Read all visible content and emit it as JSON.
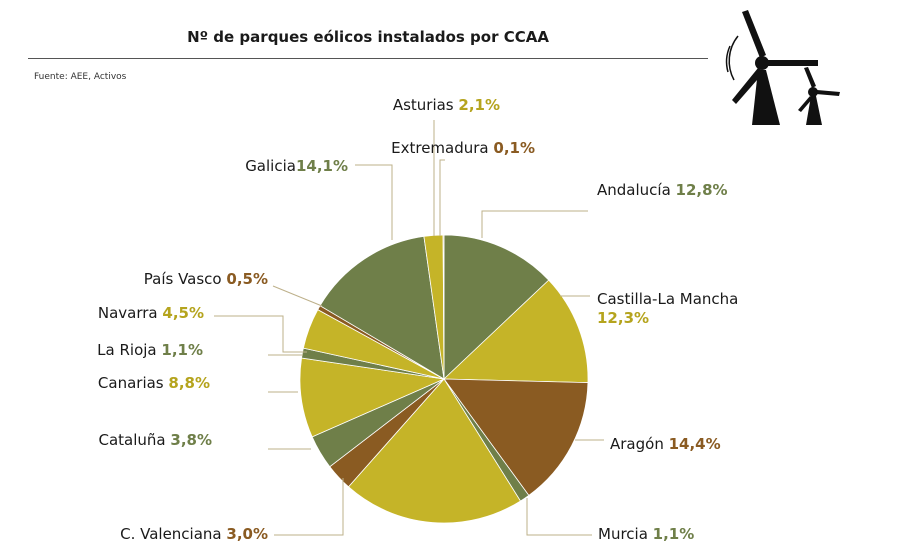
{
  "title": "Nº de parques eólicos instalados por CCAA",
  "source": "Fuente: AEE, Activos",
  "icon": "wind-turbines-icon",
  "colors": {
    "olive": "#6f7f49",
    "gold": "#c5b428",
    "brown": "#8a5b22"
  },
  "chart_data": {
    "type": "pie",
    "title": "Nº de parques eólicos instalados por CCAA",
    "slices": [
      {
        "name": "Andalucía",
        "label": "12,8%",
        "value": 12.8,
        "color": "#6f7f49"
      },
      {
        "name": "Castilla-La  Mancha",
        "label": "12,3%",
        "value": 12.3,
        "color": "#c5b428"
      },
      {
        "name": "Aragón",
        "label": "14,4%",
        "value": 14.4,
        "color": "#8a5b22"
      },
      {
        "name": "Murcia",
        "label": "1,1%",
        "value": 1.1,
        "color": "#6f7f49"
      },
      {
        "name": "",
        "label": "",
        "value": 20.2,
        "color": "#c5b428"
      },
      {
        "name": "C. Valenciana",
        "label": "3,0%",
        "value": 3.0,
        "color": "#8a5b22"
      },
      {
        "name": "Cataluña",
        "label": "3,8%",
        "value": 3.8,
        "color": "#6f7f49"
      },
      {
        "name": "Canarias",
        "label": "8,8%",
        "value": 8.8,
        "color": "#c5b428"
      },
      {
        "name": "La Rioja",
        "label": "1,1%",
        "value": 1.1,
        "color": "#6f7f49"
      },
      {
        "name": "Navarra",
        "label": "4,5%",
        "value": 4.5,
        "color": "#c5b428"
      },
      {
        "name": "País Vasco",
        "label": "0,5%",
        "value": 0.5,
        "color": "#8a5b22"
      },
      {
        "name": "Galicia",
        "label": "14,1%",
        "value": 14.1,
        "color": "#6f7f49"
      },
      {
        "name": "Asturias",
        "label": "2,1%",
        "value": 2.1,
        "color": "#c5b428"
      },
      {
        "name": "Extremadura",
        "label": "0,1%",
        "value": 0.1,
        "color": "#8a5b22"
      }
    ]
  }
}
